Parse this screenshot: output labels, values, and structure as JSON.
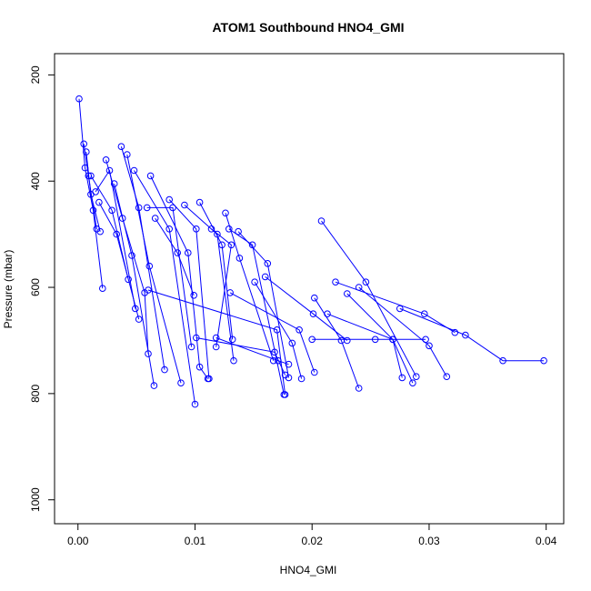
{
  "chart_data": {
    "type": "line",
    "title": "ATOM1 Southbound HNO4_GMI",
    "xlabel": "HNO4_GMI",
    "ylabel": "Pressure (mbar)",
    "xlim": [
      -0.002,
      0.0415
    ],
    "ylim": [
      1045,
      160
    ],
    "y_reversed": true,
    "grid": false,
    "legend": "none",
    "x_ticks": [
      {
        "value": 0.0,
        "label": "0.00"
      },
      {
        "value": 0.01,
        "label": "0.01"
      },
      {
        "value": 0.02,
        "label": "0.02"
      },
      {
        "value": 0.03,
        "label": "0.03"
      },
      {
        "value": 0.04,
        "label": "0.04"
      }
    ],
    "y_ticks": [
      {
        "value": 200,
        "label": "200"
      },
      {
        "value": 400,
        "label": "400"
      },
      {
        "value": 600,
        "label": "600"
      },
      {
        "value": 800,
        "label": "800"
      },
      {
        "value": 1000,
        "label": "1000"
      }
    ],
    "series_color": "#0000ff",
    "marker": "open-circle",
    "series": [
      {
        "x": [
          0.0001,
          0.0006,
          0.0013,
          0.0021
        ],
        "y": [
          245,
          375,
          455,
          602
        ]
      },
      {
        "x": [
          0.0005,
          0.0009,
          0.0016
        ],
        "y": [
          330,
          390,
          490
        ]
      },
      {
        "x": [
          0.0007,
          0.0011,
          0.0019
        ],
        "y": [
          345,
          425,
          495
        ]
      },
      {
        "x": [
          0.0011,
          0.0029,
          0.0043
        ],
        "y": [
          390,
          455,
          585
        ]
      },
      {
        "x": [
          0.0015,
          0.0027,
          0.0049
        ],
        "y": [
          420,
          380,
          640
        ]
      },
      {
        "x": [
          0.0018,
          0.0033,
          0.0052
        ],
        "y": [
          440,
          500,
          660
        ]
      },
      {
        "x": [
          0.0024,
          0.0038,
          0.0057,
          0.006
        ],
        "y": [
          360,
          470,
          610,
          725
        ]
      },
      {
        "x": [
          0.0031,
          0.0046,
          0.0065
        ],
        "y": [
          405,
          540,
          785
        ]
      },
      {
        "x": [
          0.0037,
          0.0052,
          0.0074
        ],
        "y": [
          335,
          450,
          755
        ]
      },
      {
        "x": [
          0.0042,
          0.0061,
          0.0088
        ],
        "y": [
          350,
          560,
          780
        ]
      },
      {
        "x": [
          0.0048,
          0.0078,
          0.01
        ],
        "y": [
          380,
          490,
          820
        ]
      },
      {
        "x": [
          0.0059,
          0.0081,
          0.0097
        ],
        "y": [
          450,
          450,
          712
        ]
      },
      {
        "x": [
          0.0062,
          0.0094,
          0.0104,
          0.0111
        ],
        "y": [
          390,
          535,
          750,
          772
        ]
      },
      {
        "x": [
          0.0066,
          0.0085,
          0.0099
        ],
        "y": [
          470,
          535,
          615
        ]
      },
      {
        "x": [
          0.0078,
          0.0101,
          0.0112
        ],
        "y": [
          435,
          490,
          772
        ]
      },
      {
        "x": [
          0.0091,
          0.0119,
          0.0133
        ],
        "y": [
          445,
          500,
          738
        ]
      },
      {
        "x": [
          0.0104,
          0.0123,
          0.0132
        ],
        "y": [
          440,
          520,
          698
        ]
      },
      {
        "x": [
          0.0114,
          0.0131,
          0.0118
        ],
        "y": [
          490,
          520,
          712
        ]
      },
      {
        "x": [
          0.0126,
          0.0138,
          0.0167
        ],
        "y": [
          460,
          545,
          738
        ]
      },
      {
        "x": [
          0.0129,
          0.0149,
          0.0176
        ],
        "y": [
          490,
          520,
          802
        ]
      },
      {
        "x": [
          0.0137,
          0.0162,
          0.018
        ],
        "y": [
          495,
          555,
          770
        ]
      },
      {
        "x": [
          0.0101,
          0.0168,
          0.0177
        ],
        "y": [
          695,
          722,
          765
        ]
      },
      {
        "x": [
          0.0118,
          0.0171,
          0.018
        ],
        "y": [
          695,
          738,
          745
        ]
      },
      {
        "x": [
          0.013,
          0.0189,
          0.0202
        ],
        "y": [
          610,
          680,
          760
        ]
      },
      {
        "x": [
          0.0151,
          0.0183,
          0.0191
        ],
        "y": [
          590,
          705,
          772
        ]
      },
      {
        "x": [
          0.006,
          0.017,
          0.0177
        ],
        "y": [
          605,
          680,
          802
        ]
      },
      {
        "x": [
          0.0213,
          0.0269,
          0.0277
        ],
        "y": [
          650,
          698,
          770
        ]
      },
      {
        "x": [
          0.0208,
          0.0246,
          0.0289
        ],
        "y": [
          475,
          590,
          768
        ]
      },
      {
        "x": [
          0.02,
          0.0254,
          0.0297
        ],
        "y": [
          698,
          698,
          698
        ]
      },
      {
        "x": [
          0.023,
          0.0269,
          0.0286
        ],
        "y": [
          612,
          698,
          780
        ]
      },
      {
        "x": [
          0.022,
          0.0296,
          0.0322
        ],
        "y": [
          590,
          650,
          685
        ]
      },
      {
        "x": [
          0.024,
          0.03,
          0.0315
        ],
        "y": [
          600,
          710,
          768
        ]
      },
      {
        "x": [
          0.0275,
          0.0331,
          0.0363,
          0.0398
        ],
        "y": [
          640,
          690,
          738,
          738
        ]
      },
      {
        "x": [
          0.0202,
          0.0225,
          0.024
        ],
        "y": [
          620,
          700,
          790
        ]
      },
      {
        "x": [
          0.016,
          0.0201,
          0.023
        ],
        "y": [
          580,
          650,
          700
        ]
      }
    ]
  }
}
